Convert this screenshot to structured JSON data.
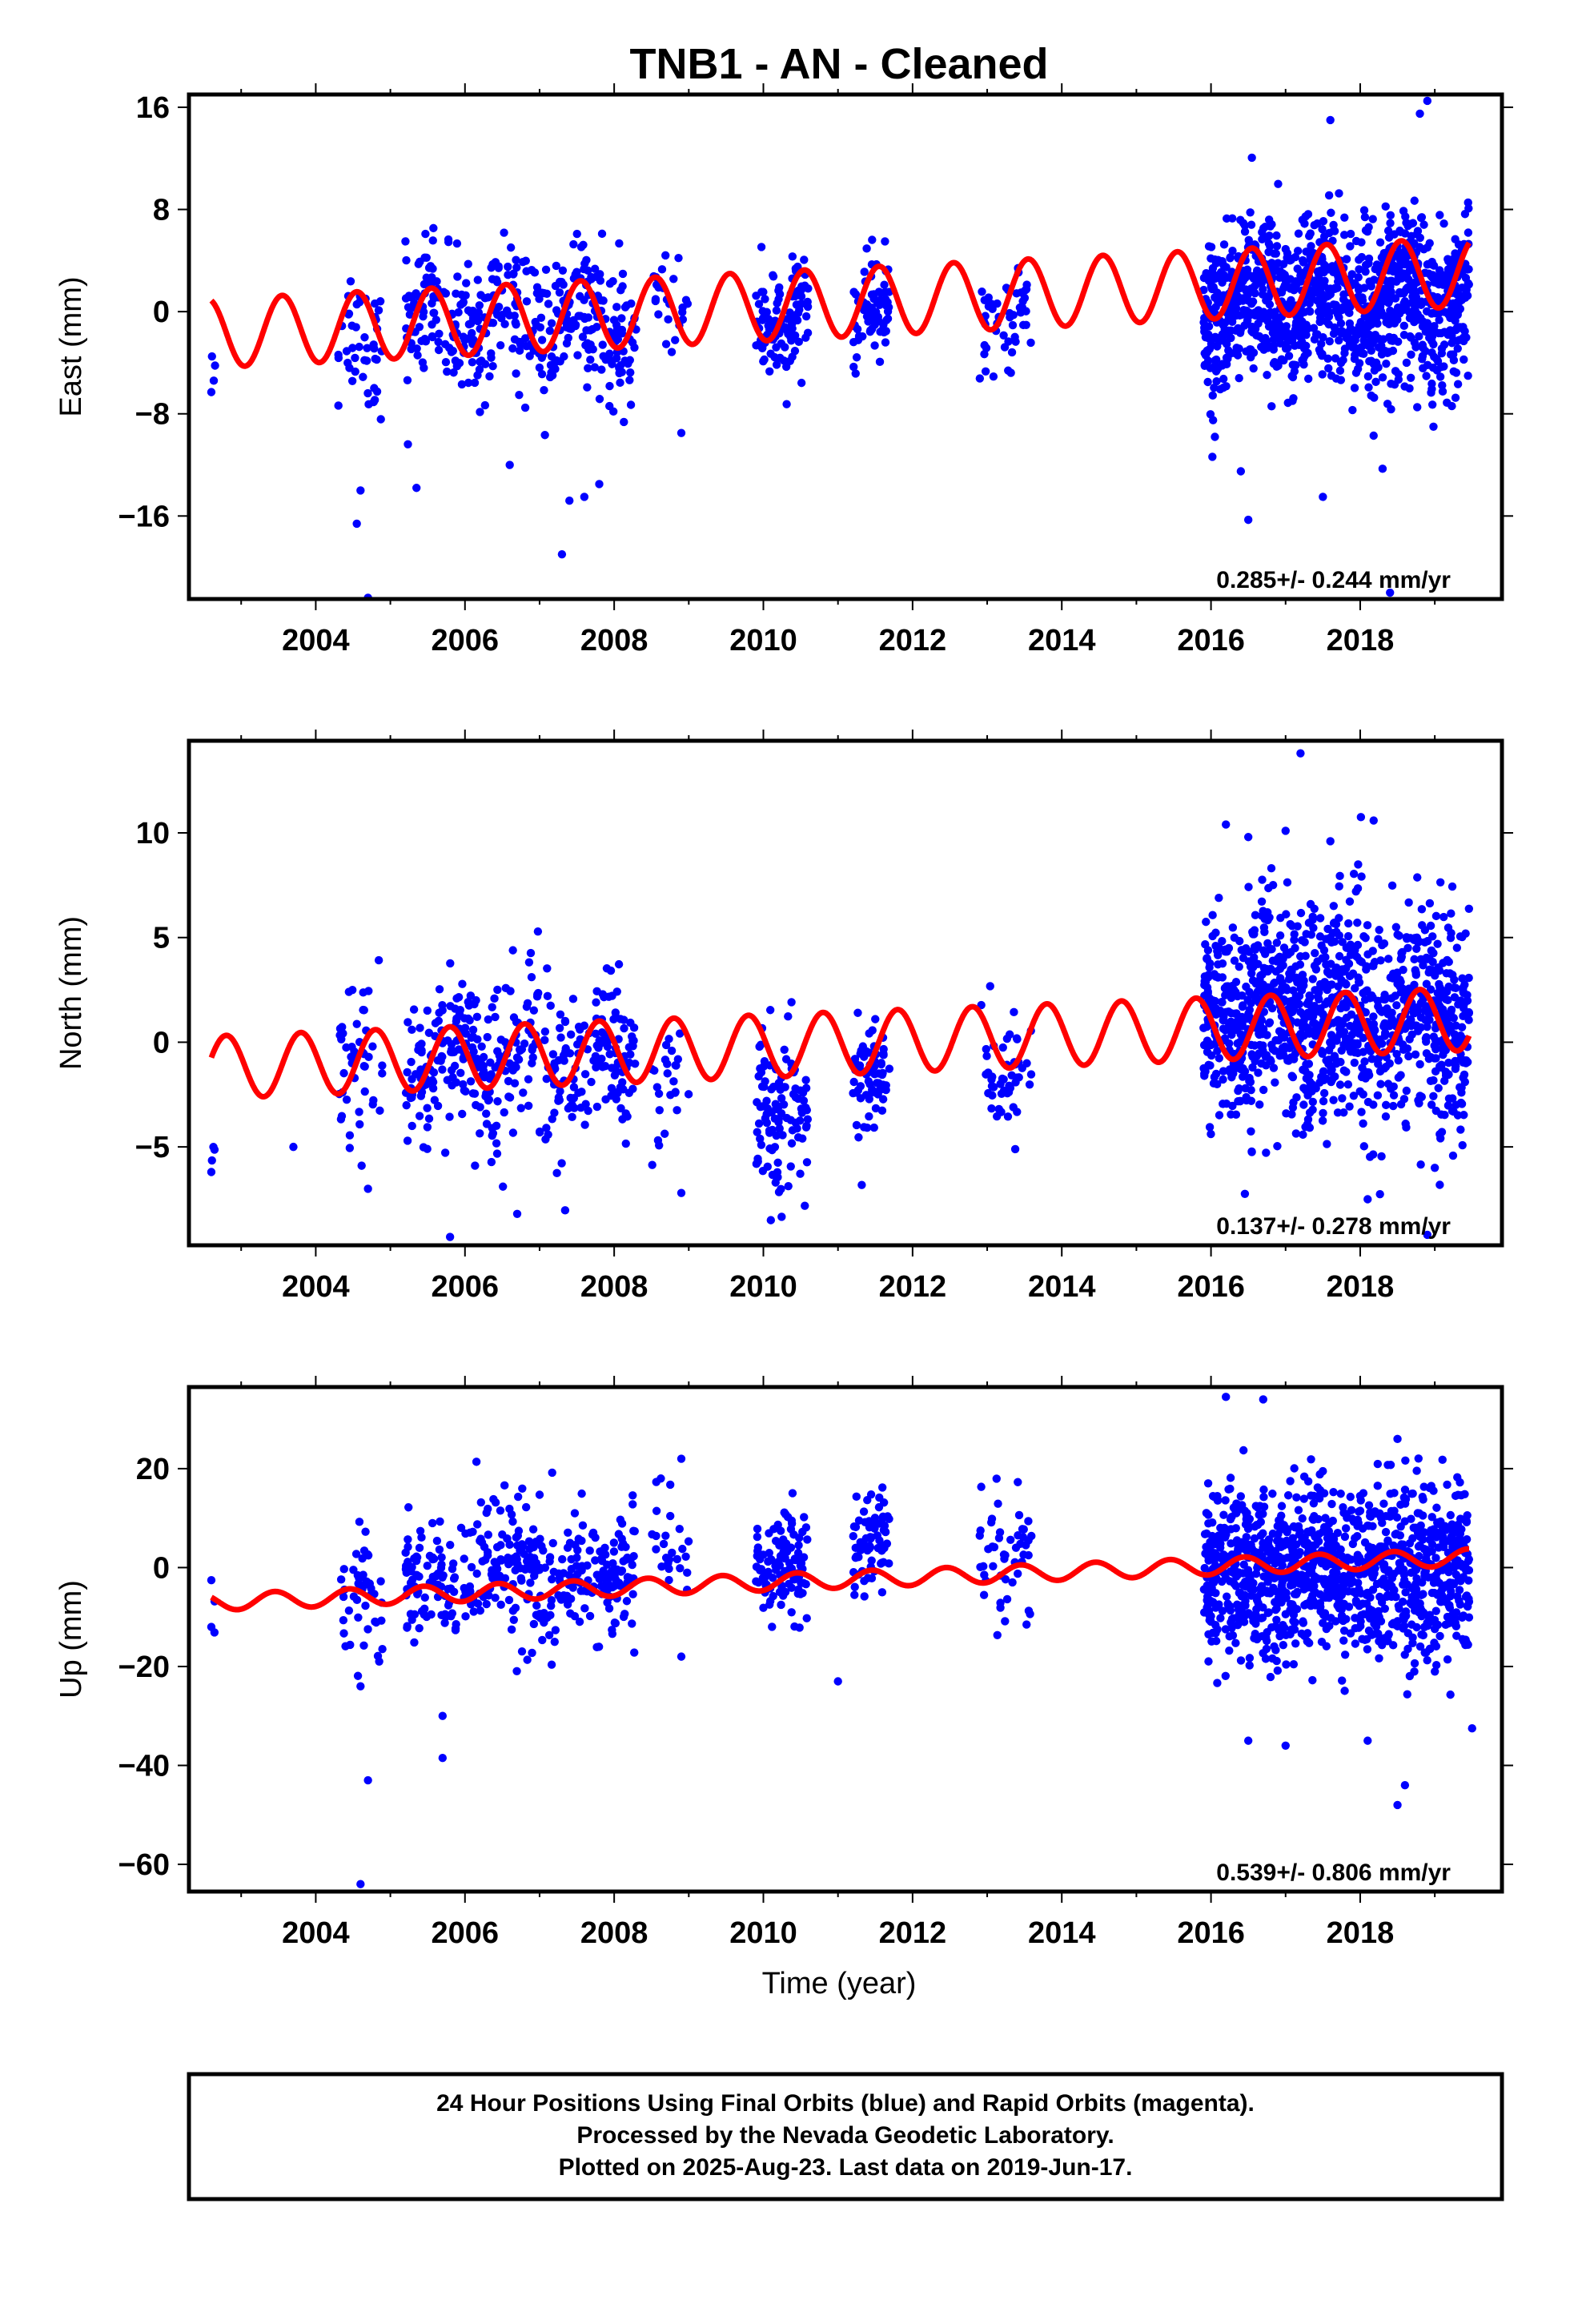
{
  "title": "TNB1  - AN - Cleaned",
  "xlabel": "Time (year)",
  "footer": [
    "24 Hour Positions Using Final Orbits (blue) and Rapid Orbits (magenta).",
    "Processed by the Nevada Geodetic Laboratory.",
    "Plotted on 2025-Aug-23. Last data on 2019-Jun-17."
  ],
  "colors": {
    "points": "#0000ff",
    "model": "#ff0000",
    "frame": "#000000"
  },
  "chart_data": [
    {
      "type": "scatter",
      "component": "East",
      "ylabel": "East (mm)",
      "xlim": [
        2002.3,
        2019.9
      ],
      "ylim": [
        -22.5,
        17.0
      ],
      "xticks": [
        2004,
        2006,
        2008,
        2010,
        2012,
        2014,
        2016,
        2018
      ],
      "yticks": [
        -16,
        -8,
        0,
        8,
        16
      ],
      "ytick_labels": [
        "−16",
        "−8",
        "0",
        "8",
        "16"
      ],
      "rate_label": "0.285+/- 0.244 mm/yr",
      "model": {
        "offset": -1.7,
        "rate": 0.285,
        "amplitude": 2.7,
        "phase": 0.3
      },
      "data_segments": [
        {
          "start": 2002.6,
          "end": 2002.65,
          "center": -4.5,
          "spread": 2.0,
          "n": 3
        },
        {
          "start": 2004.3,
          "end": 2004.9,
          "center": -2.5,
          "spread": 3.0,
          "n": 45
        },
        {
          "start": 2005.2,
          "end": 2008.3,
          "center": -0.8,
          "spread": 2.6,
          "n": 380
        },
        {
          "start": 2008.5,
          "end": 2009.0,
          "center": 0.3,
          "spread": 2.0,
          "n": 25
        },
        {
          "start": 2009.9,
          "end": 2010.6,
          "center": -0.8,
          "spread": 2.3,
          "n": 110
        },
        {
          "start": 2011.2,
          "end": 2011.7,
          "center": -0.5,
          "spread": 2.0,
          "n": 70
        },
        {
          "start": 2012.9,
          "end": 2013.6,
          "center": -0.8,
          "spread": 2.0,
          "n": 50
        },
        {
          "start": 2015.9,
          "end": 2019.46,
          "center": 0.6,
          "spread": 3.2,
          "n": 1150
        }
      ],
      "outliers": [
        [
          2004.55,
          -16.6
        ],
        [
          2004.7,
          -22.4
        ],
        [
          2004.6,
          -14.0
        ],
        [
          2005.35,
          -13.8
        ],
        [
          2006.6,
          -12.0
        ],
        [
          2007.3,
          -19.0
        ],
        [
          2007.4,
          -14.8
        ],
        [
          2007.6,
          -14.5
        ],
        [
          2007.8,
          -13.5
        ],
        [
          2008.9,
          -9.5
        ],
        [
          2002.6,
          -6.3
        ],
        [
          2016.5,
          -16.3
        ],
        [
          2016.4,
          -12.5
        ],
        [
          2017.5,
          -14.5
        ],
        [
          2017.6,
          15.0
        ],
        [
          2018.8,
          15.5
        ],
        [
          2018.9,
          16.5
        ],
        [
          2018.3,
          -12.3
        ],
        [
          2016.9,
          10.0
        ],
        [
          2018.4,
          -22.0
        ]
      ]
    },
    {
      "type": "scatter",
      "component": "North",
      "ylabel": "North (mm)",
      "xlim": [
        2002.3,
        2019.9
      ],
      "ylim": [
        -9.7,
        14.4
      ],
      "xticks": [
        2004,
        2006,
        2008,
        2010,
        2012,
        2014,
        2016,
        2018
      ],
      "yticks": [
        -5,
        0,
        5,
        10
      ],
      "ytick_labels": [
        "−5",
        "0",
        "5",
        "10"
      ],
      "rate_label": "0.137+/- 0.278 mm/yr",
      "model": {
        "offset": -1.2,
        "rate": 0.137,
        "amplitude": 1.5,
        "phase": 0.55
      },
      "data_segments": [
        {
          "start": 2002.6,
          "end": 2002.65,
          "center": -5.5,
          "spread": 0.8,
          "n": 3
        },
        {
          "start": 2004.3,
          "end": 2004.9,
          "center": -1.0,
          "spread": 2.5,
          "n": 45
        },
        {
          "start": 2005.2,
          "end": 2008.3,
          "center": -1.0,
          "spread": 1.9,
          "n": 380
        },
        {
          "start": 2008.5,
          "end": 2009.0,
          "center": -2.5,
          "spread": 1.8,
          "n": 25
        },
        {
          "start": 2009.9,
          "end": 2010.6,
          "center": -2.8,
          "spread": 1.9,
          "n": 110
        },
        {
          "start": 2011.2,
          "end": 2011.7,
          "center": -1.0,
          "spread": 1.5,
          "n": 70
        },
        {
          "start": 2012.9,
          "end": 2013.6,
          "center": -1.2,
          "spread": 1.4,
          "n": 50
        },
        {
          "start": 2015.9,
          "end": 2019.46,
          "center": 1.3,
          "spread": 2.6,
          "n": 1150
        }
      ],
      "outliers": [
        [
          2005.8,
          -9.3
        ],
        [
          2010.1,
          -8.5
        ],
        [
          2006.7,
          -8.2
        ],
        [
          2008.9,
          -7.2
        ],
        [
          2017.2,
          13.8
        ],
        [
          2016.2,
          10.4
        ],
        [
          2016.5,
          9.8
        ],
        [
          2017.0,
          10.1
        ],
        [
          2017.6,
          9.6
        ],
        [
          2018.1,
          -7.5
        ],
        [
          2018.9,
          -9.2
        ],
        [
          2019.0,
          -6.0
        ],
        [
          2002.6,
          -6.2
        ],
        [
          2004.7,
          -7.0
        ],
        [
          2003.7,
          -5.0
        ]
      ]
    },
    {
      "type": "scatter",
      "component": "Up",
      "ylabel": "Up (mm)",
      "xlim": [
        2002.3,
        2019.9
      ],
      "ylim": [
        -65.5,
        36.5
      ],
      "xticks": [
        2004,
        2006,
        2008,
        2010,
        2012,
        2014,
        2016,
        2018
      ],
      "yticks": [
        -60,
        -40,
        -20,
        0,
        20
      ],
      "ytick_labels": [
        "−60",
        "−40",
        "−20",
        "0",
        "20"
      ],
      "rate_label": "0.539+/- 0.806 mm/yr",
      "model": {
        "offset": -7.0,
        "rate": 0.539,
        "amplitude": 1.7,
        "phase": 0.2
      },
      "data_segments": [
        {
          "start": 2002.6,
          "end": 2002.65,
          "center": -8.0,
          "spread": 3.0,
          "n": 3
        },
        {
          "start": 2004.3,
          "end": 2004.9,
          "center": -6.0,
          "spread": 7.0,
          "n": 45
        },
        {
          "start": 2005.2,
          "end": 2008.3,
          "center": -1.5,
          "spread": 7.0,
          "n": 380
        },
        {
          "start": 2008.5,
          "end": 2009.0,
          "center": 3.0,
          "spread": 7.0,
          "n": 25
        },
        {
          "start": 2009.9,
          "end": 2010.6,
          "center": 0.0,
          "spread": 5.5,
          "n": 110
        },
        {
          "start": 2011.2,
          "end": 2011.7,
          "center": 4.0,
          "spread": 5.0,
          "n": 70
        },
        {
          "start": 2012.9,
          "end": 2013.6,
          "center": 3.0,
          "spread": 6.0,
          "n": 50
        },
        {
          "start": 2015.9,
          "end": 2019.46,
          "center": -1.0,
          "spread": 8.5,
          "n": 1150
        }
      ],
      "outliers": [
        [
          2004.6,
          -64.0
        ],
        [
          2004.7,
          -43.0
        ],
        [
          2004.6,
          -24.0
        ],
        [
          2005.7,
          -38.5
        ],
        [
          2005.7,
          -30.0
        ],
        [
          2008.9,
          22.0
        ],
        [
          2008.9,
          -18.0
        ],
        [
          2011.0,
          -23.0
        ],
        [
          2016.2,
          34.5
        ],
        [
          2016.7,
          34.0
        ],
        [
          2016.5,
          -35.0
        ],
        [
          2017.0,
          -36.0
        ],
        [
          2018.1,
          -35.0
        ],
        [
          2018.5,
          -48.0
        ],
        [
          2018.6,
          -44.0
        ],
        [
          2018.5,
          26.0
        ],
        [
          2019.5,
          -32.5
        ],
        [
          2002.6,
          -12.0
        ]
      ]
    }
  ]
}
